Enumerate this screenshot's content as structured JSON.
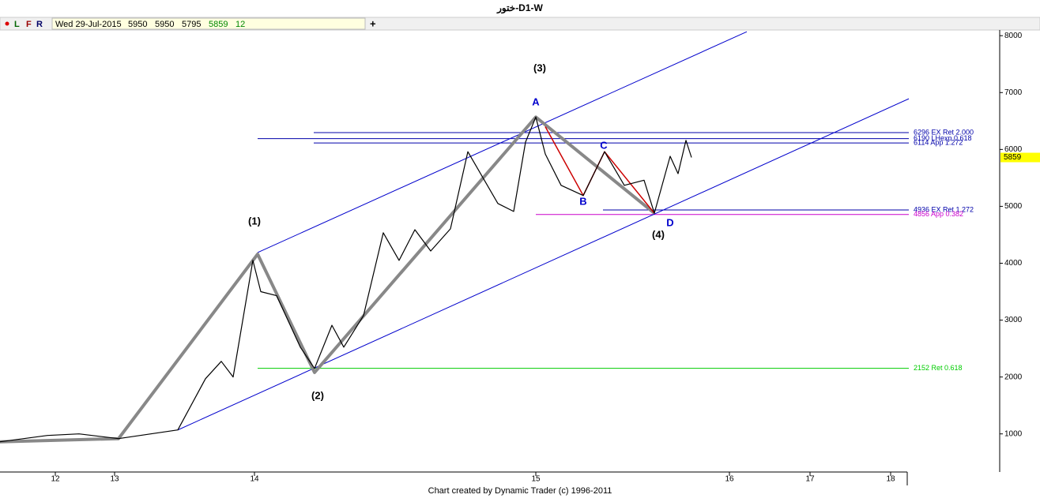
{
  "window_title": "ختور-D1-W",
  "toolbar": {
    "flags": [
      "L",
      "F",
      "R"
    ],
    "date": "Wed 29-Jul-2015",
    "open": 5950,
    "high": 5950,
    "low": 5795,
    "close": 5859,
    "volume": 12,
    "add": "+"
  },
  "chart_data": {
    "type": "line",
    "footer": "Chart created by Dynamic Trader  (c) 1996-2011",
    "xlim": [
      0,
      1265
    ],
    "xticks": [
      {
        "value": 70,
        "label": "12"
      },
      {
        "value": 145,
        "label": "13"
      },
      {
        "value": 322,
        "label": "14"
      },
      {
        "value": 678,
        "label": "15"
      },
      {
        "value": 923,
        "label": "16"
      },
      {
        "value": 1025,
        "label": "17"
      },
      {
        "value": 1127,
        "label": "18"
      }
    ],
    "ylim": [
      330,
      8100
    ],
    "yticks": [
      1000,
      2000,
      3000,
      4000,
      5000,
      6000,
      7000,
      8000
    ],
    "last_price": 5859,
    "series": [
      {
        "color": "#000000",
        "width": 1.2,
        "x": [
          0,
          60,
          100,
          150,
          225,
          260,
          280,
          295,
          320,
          330,
          350,
          380,
          398,
          420,
          435,
          460,
          485,
          505,
          525,
          545,
          570,
          592,
          630,
          650,
          665,
          678,
          690,
          710,
          738,
          765,
          790,
          815,
          828,
          848,
          858,
          868,
          875
        ],
        "values": [
          861,
          972,
          1000,
          917,
          1070,
          1970,
          2275,
          2000,
          4050,
          3500,
          3430,
          2525,
          2150,
          2910,
          2525,
          3080,
          4535,
          4050,
          4590,
          4215,
          4605,
          5960,
          5050,
          4910,
          6130,
          6570,
          5920,
          5370,
          5190,
          5960,
          5370,
          5460,
          4880,
          5880,
          5575,
          6160,
          5859
        ]
      },
      {
        "color": "#888888",
        "width": 4,
        "x": [
          0,
          150,
          326,
          398,
          678,
          828
        ],
        "values": [
          861,
          917,
          4160,
          2080,
          6570,
          4880
        ]
      },
      {
        "color": "#cc0000",
        "width": 1.5,
        "x": [
          690,
          738,
          765,
          828
        ],
        "values": [
          6400,
          5190,
          5960,
          4880
        ]
      }
    ],
    "trendlines": [
      {
        "color": "#0000cc",
        "x": [
          326,
          945
        ],
        "values": [
          4188,
          8070
        ]
      },
      {
        "color": "#0000cc",
        "x": [
          225,
          1150
        ],
        "values": [
          1069,
          6891
        ]
      }
    ],
    "levels": [
      {
        "value": 6296,
        "label": "6296 EX Ret 2.000",
        "x": 397,
        "color": "#0000aa"
      },
      {
        "value": 6190,
        "label": "6190 LHexp 0.618",
        "x": 326,
        "color": "#0000aa"
      },
      {
        "value": 6114,
        "label": "6114 App 1.272",
        "x": 397,
        "color": "#0000aa"
      },
      {
        "value": 4936,
        "label": "4936 EX Ret 1.272",
        "x": 763,
        "color": "#0000aa"
      },
      {
        "value": 4856,
        "label": "4856 App 0.382",
        "x": 678,
        "color": "#cc00cc"
      },
      {
        "value": 2152,
        "label": "2152 Ret 0.618",
        "x": 326,
        "color": "#00cc00"
      }
    ],
    "annotations": [
      "(1)",
      "(2)",
      "(3)",
      "(4)",
      "A",
      "B",
      "C",
      "D"
    ]
  }
}
